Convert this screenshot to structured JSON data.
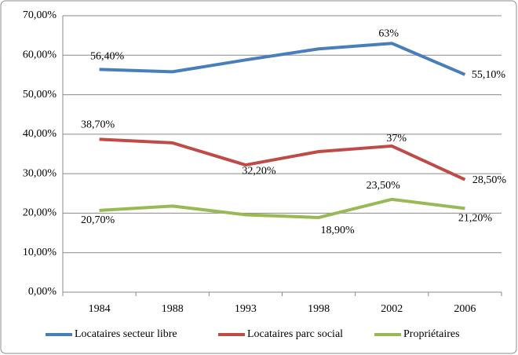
{
  "chart_data": {
    "type": "line",
    "categories": [
      "1984",
      "1988",
      "1993",
      "1998",
      "2002",
      "2006"
    ],
    "series": [
      {
        "name": "Locataires secteur libre",
        "color": "#4a7ebb",
        "values": [
          56.4,
          55.8,
          58.8,
          61.6,
          63,
          55.1
        ],
        "value_labels": [
          "56,40%",
          null,
          null,
          null,
          "63%",
          "55,10%"
        ]
      },
      {
        "name": "Locataires parc social",
        "color": "#be4b48",
        "values": [
          38.7,
          37.8,
          32.2,
          35.6,
          37,
          28.5
        ],
        "value_labels": [
          "38,70%",
          null,
          "32,20%",
          null,
          "37%",
          "28,50%"
        ]
      },
      {
        "name": "Propriétaires",
        "color": "#98b954",
        "values": [
          20.7,
          21.8,
          19.6,
          18.9,
          23.5,
          21.2
        ],
        "value_labels": [
          "20,70%",
          null,
          null,
          "18,90%",
          "23,50%",
          "21,20%"
        ]
      }
    ],
    "ylim": [
      0,
      70
    ],
    "yticks": [
      {
        "value": 0,
        "label": "0,00%"
      },
      {
        "value": 10,
        "label": "10,00%"
      },
      {
        "value": 20,
        "label": "20,00%"
      },
      {
        "value": 30,
        "label": "30,00%"
      },
      {
        "value": 40,
        "label": "40,00%"
      },
      {
        "value": 50,
        "label": "50,00%"
      },
      {
        "value": 60,
        "label": "60,00%"
      },
      {
        "value": 70,
        "label": "70,00%"
      }
    ],
    "grid": true,
    "legend": "bottom"
  }
}
